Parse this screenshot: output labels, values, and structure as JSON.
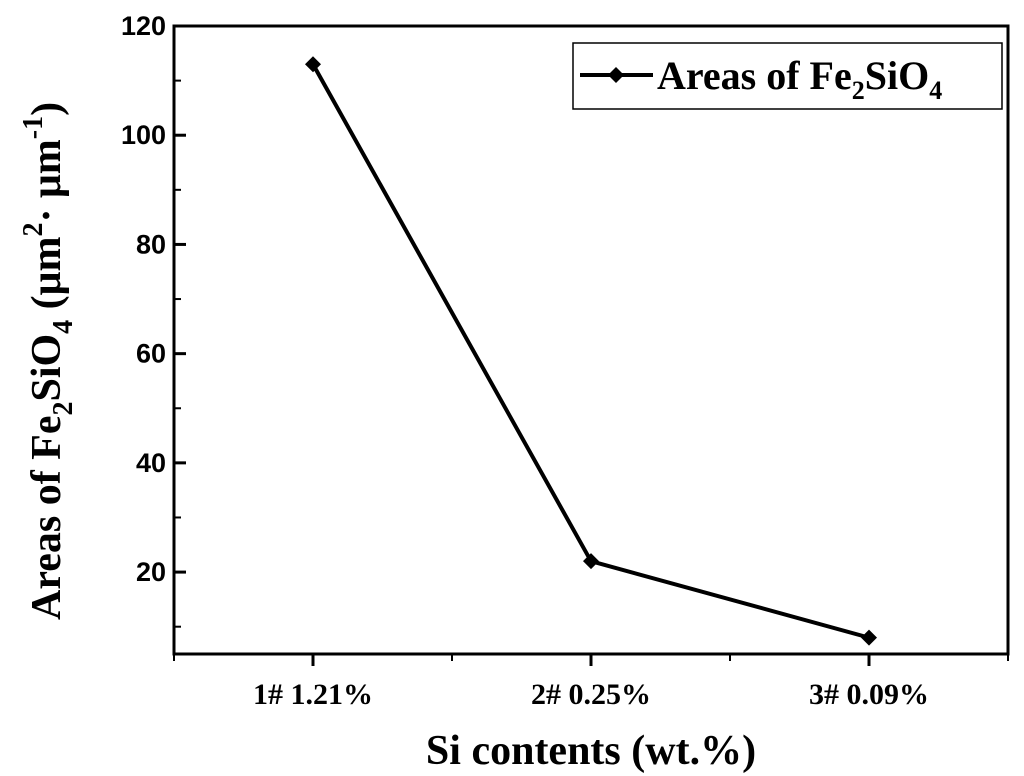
{
  "chart_data": {
    "type": "line",
    "categories": [
      "1# 1.21%",
      "2# 0.25%",
      "3# 0.09%"
    ],
    "series": [
      {
        "name": "Areas of Fe2SiO4",
        "values": [
          113,
          22,
          8
        ],
        "marker": "diamond",
        "color": "#000000"
      }
    ],
    "xlabel": "Si contents (wt.%)",
    "ylabel": {
      "parts": [
        "Areas of Fe",
        "2",
        "SiO",
        "4",
        " (μm",
        "2",
        "· μm",
        "-1",
        ")"
      ]
    },
    "legend": {
      "label_main": "Areas of Fe",
      "label_sub1": "2",
      "label_mid": "SiO",
      "label_sub2": "4",
      "position": "top-right"
    },
    "ylim": [
      5,
      120
    ],
    "yticks": [
      20,
      40,
      60,
      80,
      100,
      120
    ],
    "grid": false
  }
}
